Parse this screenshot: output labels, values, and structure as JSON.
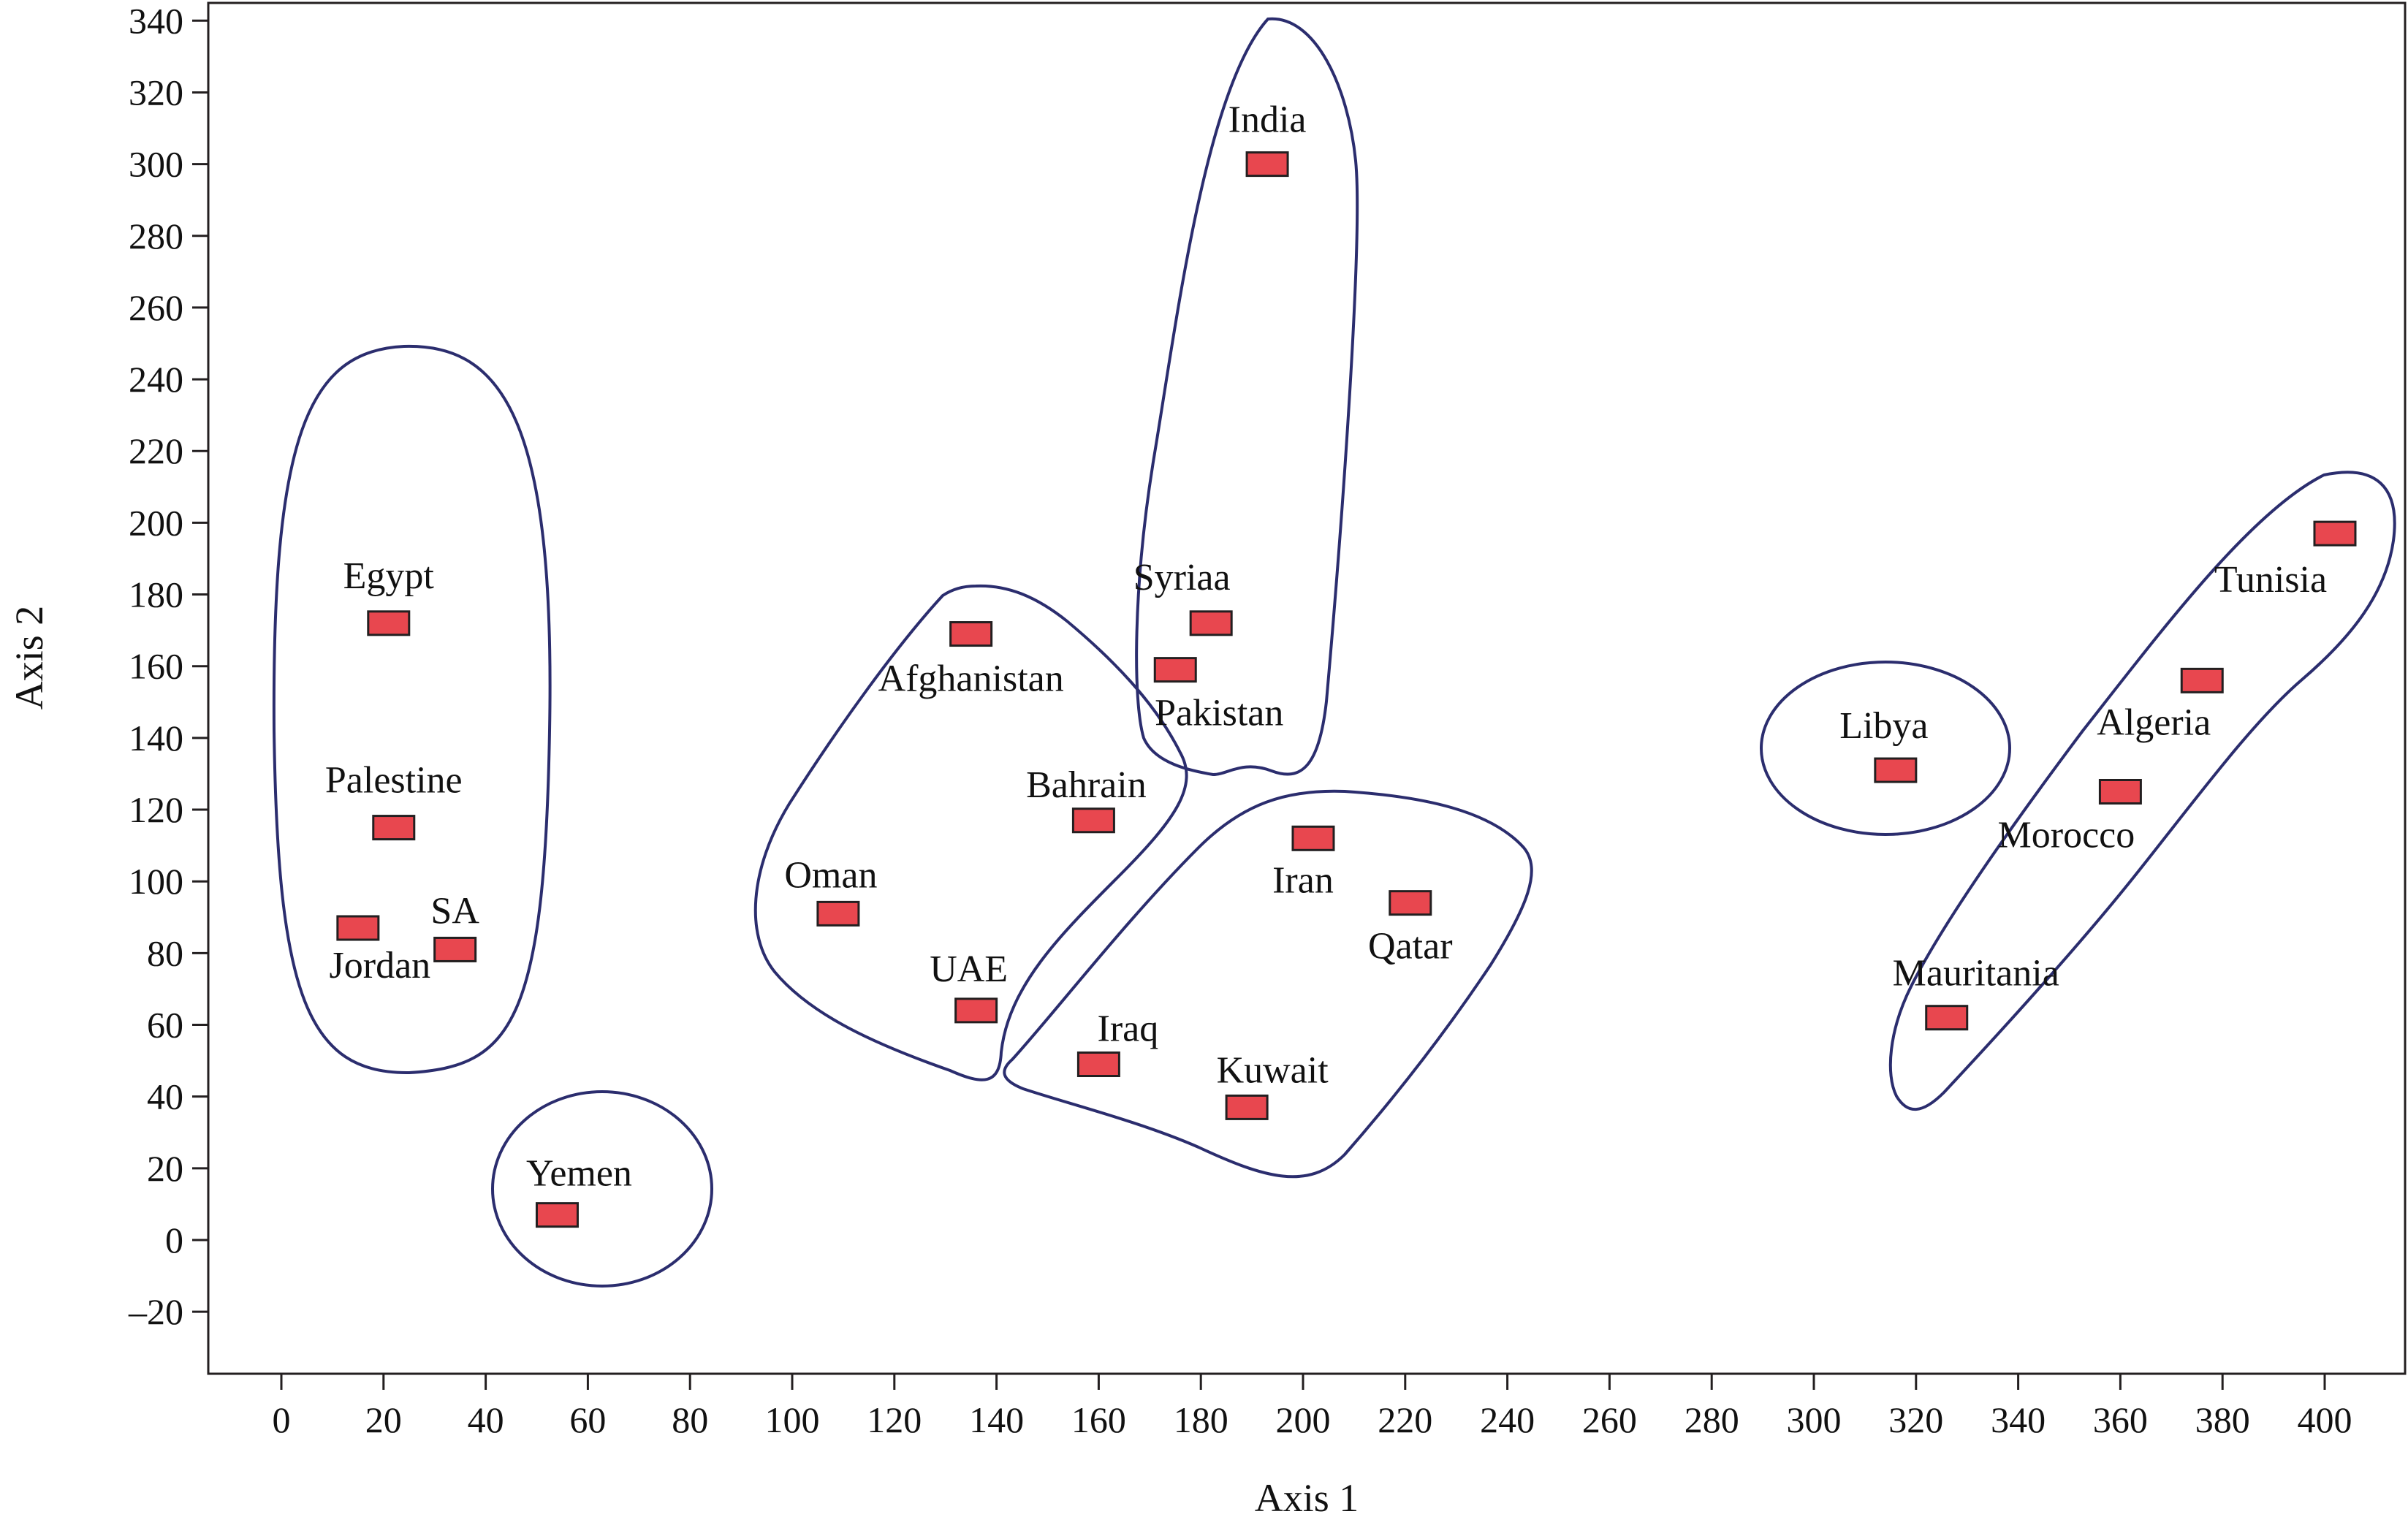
{
  "chart_data": {
    "type": "scatter",
    "xlabel": "Axis 1",
    "ylabel": "Axis 2",
    "xlim": [
      -15,
      415
    ],
    "ylim": [
      -37,
      346
    ],
    "xticks": [
      0,
      20,
      40,
      60,
      80,
      100,
      120,
      140,
      160,
      180,
      200,
      220,
      240,
      260,
      280,
      300,
      320,
      340,
      360,
      380,
      400
    ],
    "yticks": [
      -20,
      0,
      20,
      40,
      60,
      80,
      100,
      120,
      140,
      160,
      180,
      200,
      220,
      240,
      260,
      280,
      300,
      320,
      340
    ],
    "xtick_labels": [
      "0",
      "20",
      "40",
      "60",
      "80",
      "100",
      "120",
      "140",
      "160",
      "180",
      "200",
      "220",
      "240",
      "260",
      "280",
      "300",
      "320",
      "340",
      "360",
      "380",
      "400"
    ],
    "ytick_labels": [
      "–20",
      "0",
      "20",
      "40",
      "60",
      "80",
      "100",
      "120",
      "140",
      "160",
      "180",
      "200",
      "220",
      "240",
      "260",
      "280",
      "300",
      "320",
      "340"
    ],
    "grid": false,
    "marker_color": "#e8474f",
    "marker_edge_color": "#231f20",
    "cluster_outline_color": "#2b2d6e",
    "points": [
      {
        "label": "Egypt",
        "x": 21,
        "y": 172
      },
      {
        "label": "Palestine",
        "x": 22,
        "y": 115
      },
      {
        "label": "Jordan",
        "x": 15,
        "y": 87
      },
      {
        "label": "SA",
        "x": 34,
        "y": 81
      },
      {
        "label": "Yemen",
        "x": 54,
        "y": 7
      },
      {
        "label": "Afghanistan",
        "x": 135,
        "y": 169
      },
      {
        "label": "Bahrain",
        "x": 159,
        "y": 117
      },
      {
        "label": "Oman",
        "x": 109,
        "y": 91
      },
      {
        "label": "UAE",
        "x": 136,
        "y": 64
      },
      {
        "label": "India",
        "x": 193,
        "y": 300
      },
      {
        "label": "Syriaa",
        "x": 182,
        "y": 172
      },
      {
        "label": "Pakistan",
        "x": 175,
        "y": 159
      },
      {
        "label": "Iran",
        "x": 202,
        "y": 112
      },
      {
        "label": "Qatar",
        "x": 221,
        "y": 94
      },
      {
        "label": "Iraq",
        "x": 160,
        "y": 49
      },
      {
        "label": "Kuwait",
        "x": 189,
        "y": 37
      },
      {
        "label": "Libya",
        "x": 316,
        "y": 131
      },
      {
        "label": "Tunisia",
        "x": 402,
        "y": 197
      },
      {
        "label": "Algeria",
        "x": 376,
        "y": 156
      },
      {
        "label": "Morocco",
        "x": 360,
        "y": 125
      },
      {
        "label": "Mauritania",
        "x": 326,
        "y": 62
      }
    ]
  }
}
